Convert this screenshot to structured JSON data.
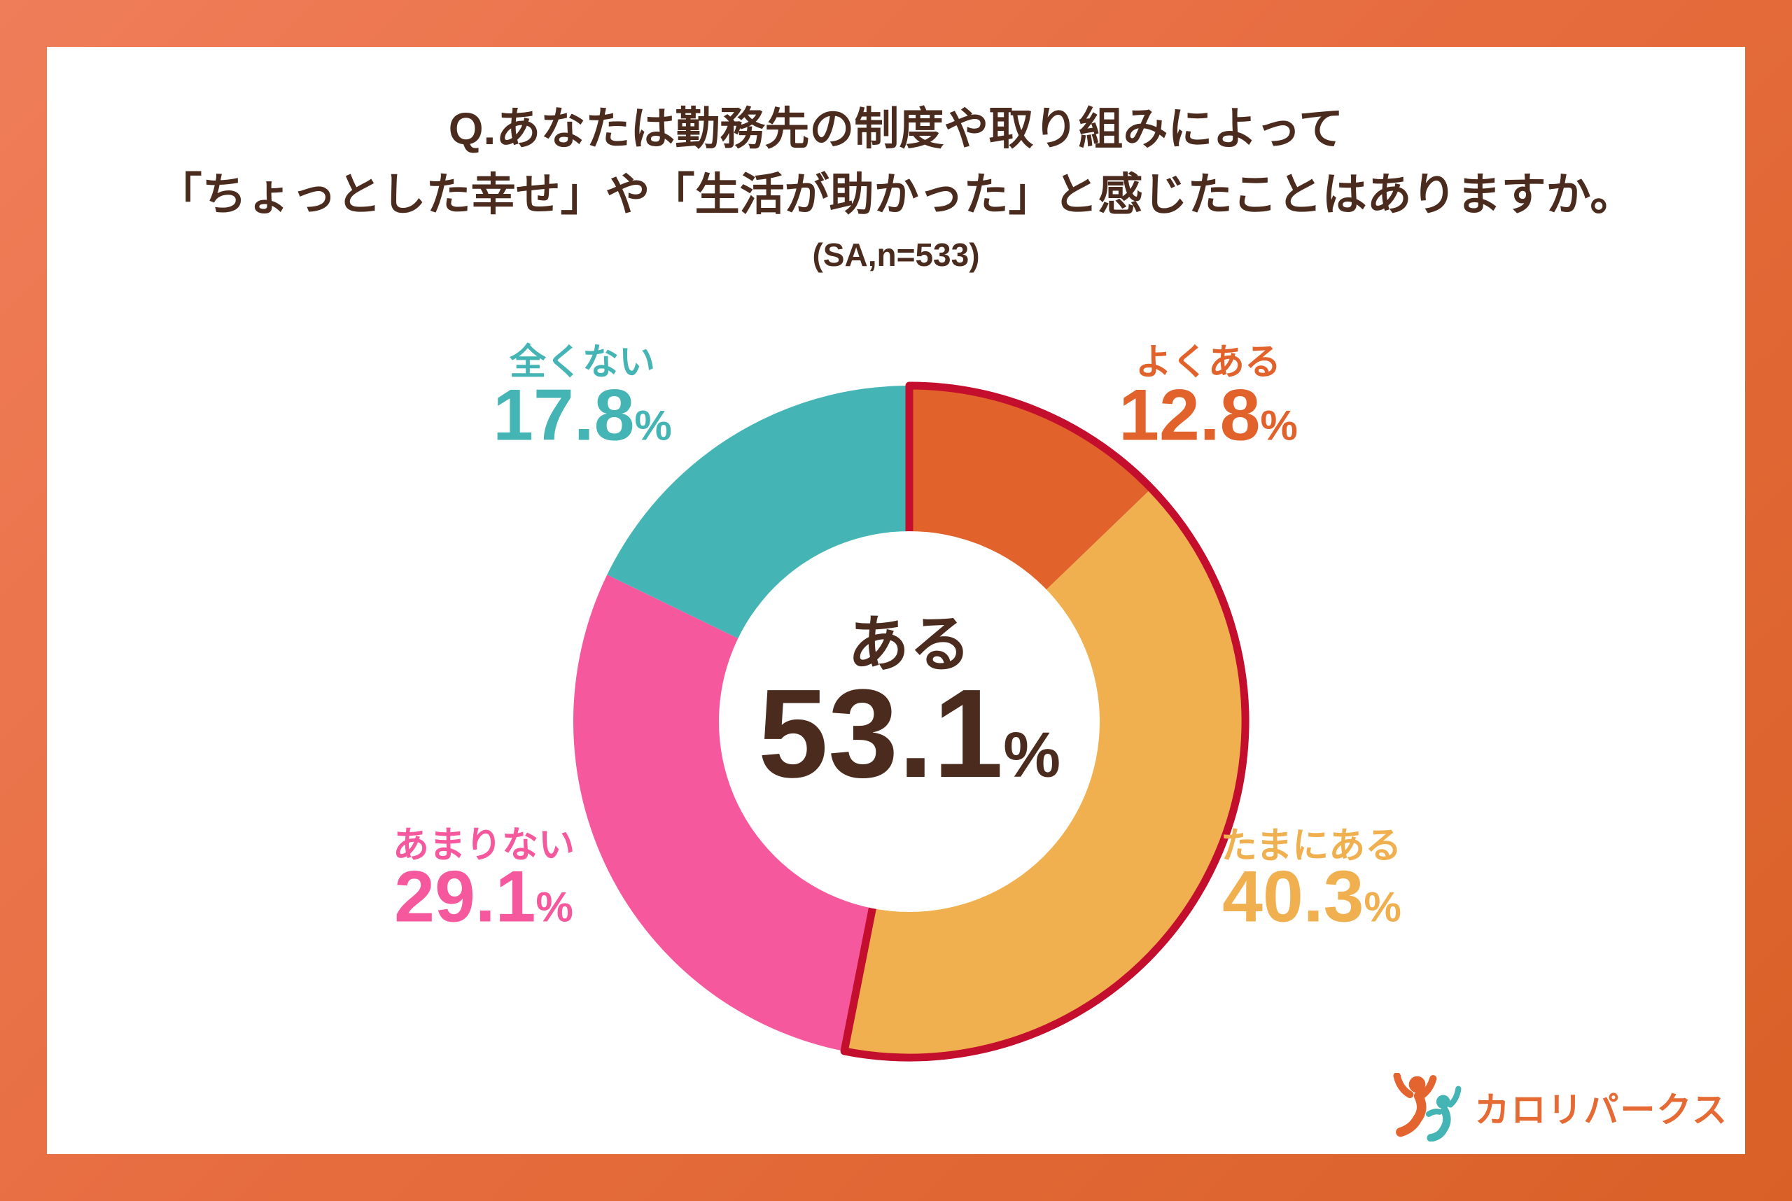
{
  "header": {
    "title_line1": "Q.あなたは勤務先の制度や取り組みによって",
    "title_line2": "「ちょっとした幸せ」や「生活が助かった」と感じたことはありますか。",
    "subtitle": "(SA,n=533)"
  },
  "chart_data": {
    "type": "pie",
    "donut": true,
    "title": "Q.あなたは勤務先の制度や取り組みによって「ちょっとした幸せ」や「生活が助かった」と感じたことはありますか。",
    "subtitle": "(SA,n=533)",
    "sample_size": 533,
    "unit": "%",
    "start_angle_deg": 0,
    "direction": "clockwise",
    "segments": [
      {
        "label": "よくある",
        "value": 12.8,
        "color": "#E2622B"
      },
      {
        "label": "たまにある",
        "value": 40.3,
        "color": "#F0B04F"
      },
      {
        "label": "あまりない",
        "value": 29.1,
        "color": "#F6589D"
      },
      {
        "label": "全くない",
        "value": 17.8,
        "color": "#45B4B5"
      }
    ],
    "center_label": {
      "text": "ある",
      "value": 53.1
    },
    "highlight_outline": {
      "covers": [
        "よくある",
        "たまにある"
      ],
      "total": 53.1,
      "color": "#C30E2E"
    }
  },
  "footer": {
    "logo_text": "カロリパークス",
    "logo_mark": "two-people-figures"
  },
  "theme": {
    "frame_start": "#EF7D59",
    "frame_mid": "#E66C3E",
    "frame_end": "#D96127",
    "card_bg": "#FFFFFF",
    "text_brown": "#4A2B1D",
    "outline_red": "#C30E2E",
    "logo_orange": "#E56A33",
    "logo_teal": "#45B4B5"
  }
}
